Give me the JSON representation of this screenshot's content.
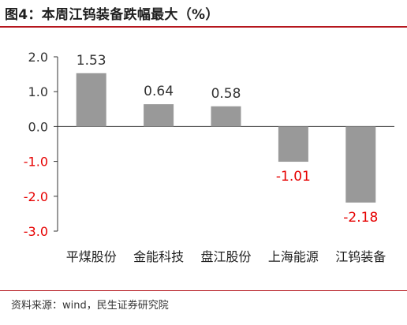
{
  "title": "图4：本周江钨装备跌幅最大（%）",
  "source": "资料来源：wind，民生证券研究院",
  "colors": {
    "bar": "#999999",
    "positive_label": "#333333",
    "negative_label": "#e60000",
    "axis": "#333333",
    "title_rule": "#b5161d"
  },
  "chart_data": {
    "type": "bar",
    "categories": [
      "平煤股份",
      "金能科技",
      "盘江股份",
      "上海能源",
      "江钨装备"
    ],
    "values": [
      1.53,
      0.64,
      0.58,
      -1.01,
      -2.18
    ],
    "data_labels": [
      "1.53",
      "0.64",
      "0.58",
      "-1.01",
      "-2.18"
    ],
    "ylim": [
      -3.0,
      2.0
    ],
    "yticks": [
      2.0,
      1.0,
      0.0,
      -1.0,
      -2.0,
      -3.0
    ],
    "ytick_labels": [
      "2.0",
      "1.0",
      "0.0",
      "-1.0",
      "-2.0",
      "-3.0"
    ],
    "title": "图4：本周江钨装备跌幅最大（%）",
    "xlabel": "",
    "ylabel": "",
    "grid": false,
    "legend": "none"
  }
}
